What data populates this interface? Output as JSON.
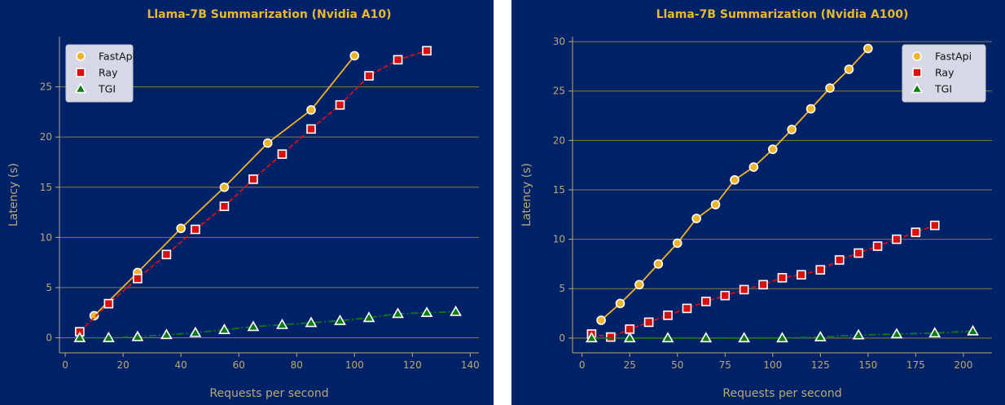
{
  "chart_data": [
    {
      "type": "line",
      "title": "Llama-7B Summarization (Nvidia A10)",
      "xlabel": "Requests per second",
      "ylabel": "Latency (s)",
      "xlim": [
        -2,
        143
      ],
      "ylim": [
        -1.5,
        30
      ],
      "xticks": [
        0,
        20,
        40,
        60,
        80,
        100,
        120,
        140
      ],
      "yticks": [
        0,
        5,
        10,
        15,
        20,
        25
      ],
      "grid": "horizontal",
      "legend_position": "top-left",
      "series": [
        {
          "name": "FastApi",
          "color": "#f0b429",
          "marker": "circle",
          "linestyle": "solid",
          "x": [
            10,
            25,
            40,
            55,
            70,
            85,
            100
          ],
          "y": [
            2.2,
            6.5,
            10.9,
            15.0,
            19.4,
            22.7,
            28.1
          ]
        },
        {
          "name": "Ray",
          "color": "#d81010",
          "marker": "square",
          "linestyle": "dashed",
          "x": [
            5,
            15,
            25,
            35,
            45,
            55,
            65,
            75,
            85,
            95,
            105,
            115,
            125
          ],
          "y": [
            0.6,
            3.4,
            5.9,
            8.3,
            10.8,
            13.1,
            15.8,
            18.3,
            20.8,
            23.2,
            26.1,
            27.7,
            28.6
          ]
        },
        {
          "name": "TGI",
          "color": "#0e7a12",
          "marker": "triangle",
          "linestyle": "dashdot",
          "x": [
            5,
            15,
            25,
            35,
            45,
            55,
            65,
            75,
            85,
            95,
            105,
            115,
            125,
            135
          ],
          "y": [
            0.0,
            0.0,
            0.1,
            0.3,
            0.5,
            0.8,
            1.1,
            1.3,
            1.5,
            1.7,
            2.0,
            2.4,
            2.5,
            2.6
          ]
        }
      ]
    },
    {
      "type": "line",
      "title": "Llama-7B Summarization (Nvidia A100)",
      "xlabel": "Requests per second",
      "ylabel": "Latency (s)",
      "xlim": [
        -5,
        215
      ],
      "ylim": [
        -1.5,
        30.5
      ],
      "xticks": [
        0,
        25,
        50,
        75,
        100,
        125,
        150,
        175,
        200
      ],
      "yticks": [
        0,
        5,
        10,
        15,
        20,
        25,
        30
      ],
      "grid": "horizontal",
      "legend_position": "top-right",
      "series": [
        {
          "name": "FastApi",
          "color": "#f0b429",
          "marker": "circle",
          "linestyle": "solid",
          "x": [
            10,
            20,
            30,
            40,
            50,
            60,
            70,
            80,
            90,
            100,
            110,
            120,
            130,
            140,
            150
          ],
          "y": [
            1.8,
            3.5,
            5.4,
            7.5,
            9.6,
            12.1,
            13.5,
            16.0,
            17.3,
            19.1,
            21.1,
            23.2,
            25.3,
            27.2,
            29.3
          ]
        },
        {
          "name": "Ray",
          "color": "#d81010",
          "marker": "square",
          "linestyle": "dashed",
          "x": [
            5,
            15,
            25,
            35,
            45,
            55,
            65,
            75,
            85,
            95,
            105,
            115,
            125,
            135,
            145,
            155,
            165,
            175,
            185
          ],
          "y": [
            0.4,
            0.1,
            0.9,
            1.6,
            2.3,
            3.0,
            3.7,
            4.3,
            4.9,
            5.4,
            6.1,
            6.4,
            6.9,
            7.9,
            8.6,
            9.3,
            10.0,
            10.7,
            11.4
          ]
        },
        {
          "name": "TGI",
          "color": "#0e7a12",
          "marker": "triangle",
          "linestyle": "dashdot",
          "x": [
            5,
            25,
            45,
            65,
            85,
            105,
            125,
            145,
            165,
            185,
            205
          ],
          "y": [
            0.0,
            0.0,
            0.0,
            0.0,
            0.0,
            0.0,
            0.1,
            0.3,
            0.4,
            0.5,
            0.7
          ]
        }
      ]
    }
  ]
}
